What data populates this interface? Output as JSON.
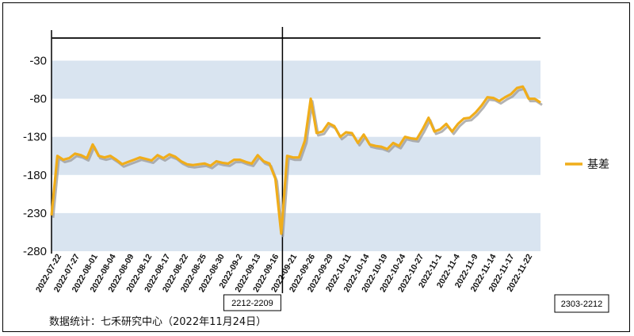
{
  "chart_data": {
    "type": "line",
    "title": "",
    "xlabel": "",
    "ylabel": "",
    "ylim": [
      -280,
      10
    ],
    "yticks": [
      -30,
      -80,
      -130,
      -180,
      -230,
      -280
    ],
    "band_color": "#d9e4f0",
    "line_color": "#f0ad1a",
    "shadow_color": "#9a9a9a",
    "x_tick_labels": [
      "2022-07-22",
      "2022-07-27",
      "2022-08-01",
      "2022-08-04",
      "2022-08-09",
      "2022-08-12",
      "2022-08-17",
      "2022-08-22",
      "2022-08-25",
      "2022-08-30",
      "2022-09-2",
      "2022-09-13",
      "2022-09-16",
      "2022-09-21",
      "2022-09-26",
      "2022-09-29",
      "2022-10-11",
      "2022-10-14",
      "2022-10-19",
      "2022-10-24",
      "2022-10-27",
      "2022-11-1",
      "2022-11-4",
      "2022-11-9",
      "2022-11-14",
      "2022-11-17",
      "2022-11-22"
    ],
    "series": [
      {
        "name": "基差",
        "values": [
          -233,
          -155,
          -160,
          -158,
          -152,
          -154,
          -158,
          -140,
          -155,
          -157,
          -155,
          -160,
          -166,
          -163,
          -160,
          -157,
          -159,
          -161,
          -154,
          -158,
          -153,
          -156,
          -162,
          -166,
          -167,
          -166,
          -165,
          -168,
          -162,
          -164,
          -165,
          -160,
          -160,
          -163,
          -165,
          -154,
          -162,
          -165,
          -185,
          -257,
          -155,
          -157,
          -157,
          -135,
          -80,
          -125,
          -123,
          -112,
          -116,
          -130,
          -124,
          -125,
          -138,
          -127,
          -140,
          -142,
          -143,
          -146,
          -138,
          -142,
          -130,
          -132,
          -133,
          -120,
          -105,
          -123,
          -120,
          -113,
          -123,
          -113,
          -106,
          -105,
          -98,
          -89,
          -78,
          -79,
          -83,
          -78,
          -74,
          -66,
          -64,
          -80,
          -80,
          -85
        ]
      }
    ],
    "contracts": [
      {
        "label": "2212-2209",
        "split_index": 39
      },
      {
        "label": "2303-2212"
      }
    ],
    "legend_position": "right",
    "source": "数据统计：七禾研究中心（2022年11月24日）"
  }
}
